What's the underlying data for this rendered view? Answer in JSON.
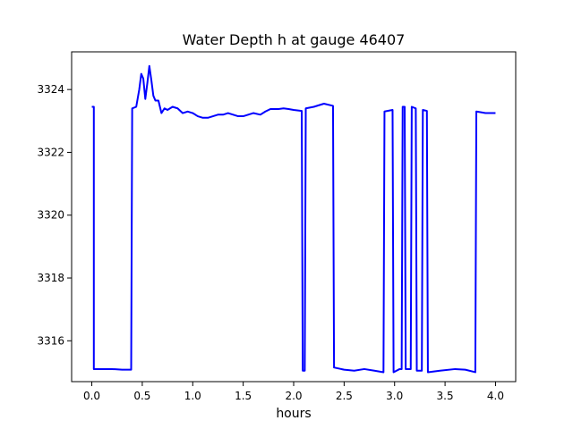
{
  "chart_data": {
    "type": "line",
    "title": "Water Depth h at gauge 46407",
    "xlabel": "hours",
    "ylabel": "",
    "xlim": [
      -0.2,
      4.2
    ],
    "ylim": [
      3314.7,
      3325.2
    ],
    "xticks": [
      0.0,
      0.5,
      1.0,
      1.5,
      2.0,
      2.5,
      3.0,
      3.5,
      4.0
    ],
    "xtick_labels": [
      "0.0",
      "0.5",
      "1.0",
      "1.5",
      "2.0",
      "2.5",
      "3.0",
      "3.5",
      "4.0"
    ],
    "yticks": [
      3316,
      3318,
      3320,
      3322,
      3324
    ],
    "ytick_labels": [
      "3316",
      "3318",
      "3320",
      "3322",
      "3324"
    ],
    "grid": false,
    "series": [
      {
        "color": "#0000ff",
        "points": [
          [
            0.0,
            3323.45
          ],
          [
            0.02,
            3323.45
          ],
          [
            0.02,
            3315.1
          ],
          [
            0.2,
            3315.1
          ],
          [
            0.3,
            3315.08
          ],
          [
            0.39,
            3315.08
          ],
          [
            0.4,
            3323.4
          ],
          [
            0.44,
            3323.45
          ],
          [
            0.47,
            3324.0
          ],
          [
            0.49,
            3324.5
          ],
          [
            0.51,
            3324.35
          ],
          [
            0.53,
            3323.7
          ],
          [
            0.55,
            3324.2
          ],
          [
            0.57,
            3324.75
          ],
          [
            0.59,
            3324.3
          ],
          [
            0.61,
            3323.8
          ],
          [
            0.63,
            3323.65
          ],
          [
            0.66,
            3323.65
          ],
          [
            0.69,
            3323.25
          ],
          [
            0.72,
            3323.4
          ],
          [
            0.75,
            3323.35
          ],
          [
            0.8,
            3323.45
          ],
          [
            0.85,
            3323.4
          ],
          [
            0.9,
            3323.25
          ],
          [
            0.95,
            3323.3
          ],
          [
            1.0,
            3323.25
          ],
          [
            1.05,
            3323.15
          ],
          [
            1.1,
            3323.1
          ],
          [
            1.15,
            3323.1
          ],
          [
            1.2,
            3323.15
          ],
          [
            1.25,
            3323.2
          ],
          [
            1.3,
            3323.2
          ],
          [
            1.35,
            3323.25
          ],
          [
            1.4,
            3323.2
          ],
          [
            1.45,
            3323.15
          ],
          [
            1.5,
            3323.15
          ],
          [
            1.55,
            3323.2
          ],
          [
            1.6,
            3323.25
          ],
          [
            1.67,
            3323.2
          ],
          [
            1.72,
            3323.3
          ],
          [
            1.77,
            3323.38
          ],
          [
            1.85,
            3323.38
          ],
          [
            1.9,
            3323.4
          ],
          [
            1.95,
            3323.38
          ],
          [
            2.0,
            3323.35
          ],
          [
            2.08,
            3323.32
          ],
          [
            2.09,
            3315.05
          ],
          [
            2.11,
            3315.05
          ],
          [
            2.12,
            3323.4
          ],
          [
            2.2,
            3323.45
          ],
          [
            2.3,
            3323.55
          ],
          [
            2.39,
            3323.48
          ],
          [
            2.4,
            3315.15
          ],
          [
            2.5,
            3315.08
          ],
          [
            2.6,
            3315.05
          ],
          [
            2.7,
            3315.1
          ],
          [
            2.8,
            3315.05
          ],
          [
            2.89,
            3315.0
          ],
          [
            2.9,
            3323.3
          ],
          [
            2.98,
            3323.35
          ],
          [
            2.99,
            3315.0
          ],
          [
            3.05,
            3315.1
          ],
          [
            3.07,
            3315.1
          ],
          [
            3.08,
            3323.45
          ],
          [
            3.1,
            3323.45
          ],
          [
            3.11,
            3315.1
          ],
          [
            3.16,
            3315.1
          ],
          [
            3.17,
            3323.45
          ],
          [
            3.21,
            3323.4
          ],
          [
            3.22,
            3315.05
          ],
          [
            3.27,
            3315.05
          ],
          [
            3.28,
            3323.35
          ],
          [
            3.32,
            3323.32
          ],
          [
            3.33,
            3315.0
          ],
          [
            3.45,
            3315.05
          ],
          [
            3.6,
            3315.1
          ],
          [
            3.7,
            3315.08
          ],
          [
            3.8,
            3315.0
          ],
          [
            3.81,
            3323.3
          ],
          [
            3.85,
            3323.28
          ],
          [
            3.9,
            3323.25
          ],
          [
            4.0,
            3323.25
          ]
        ]
      }
    ]
  }
}
